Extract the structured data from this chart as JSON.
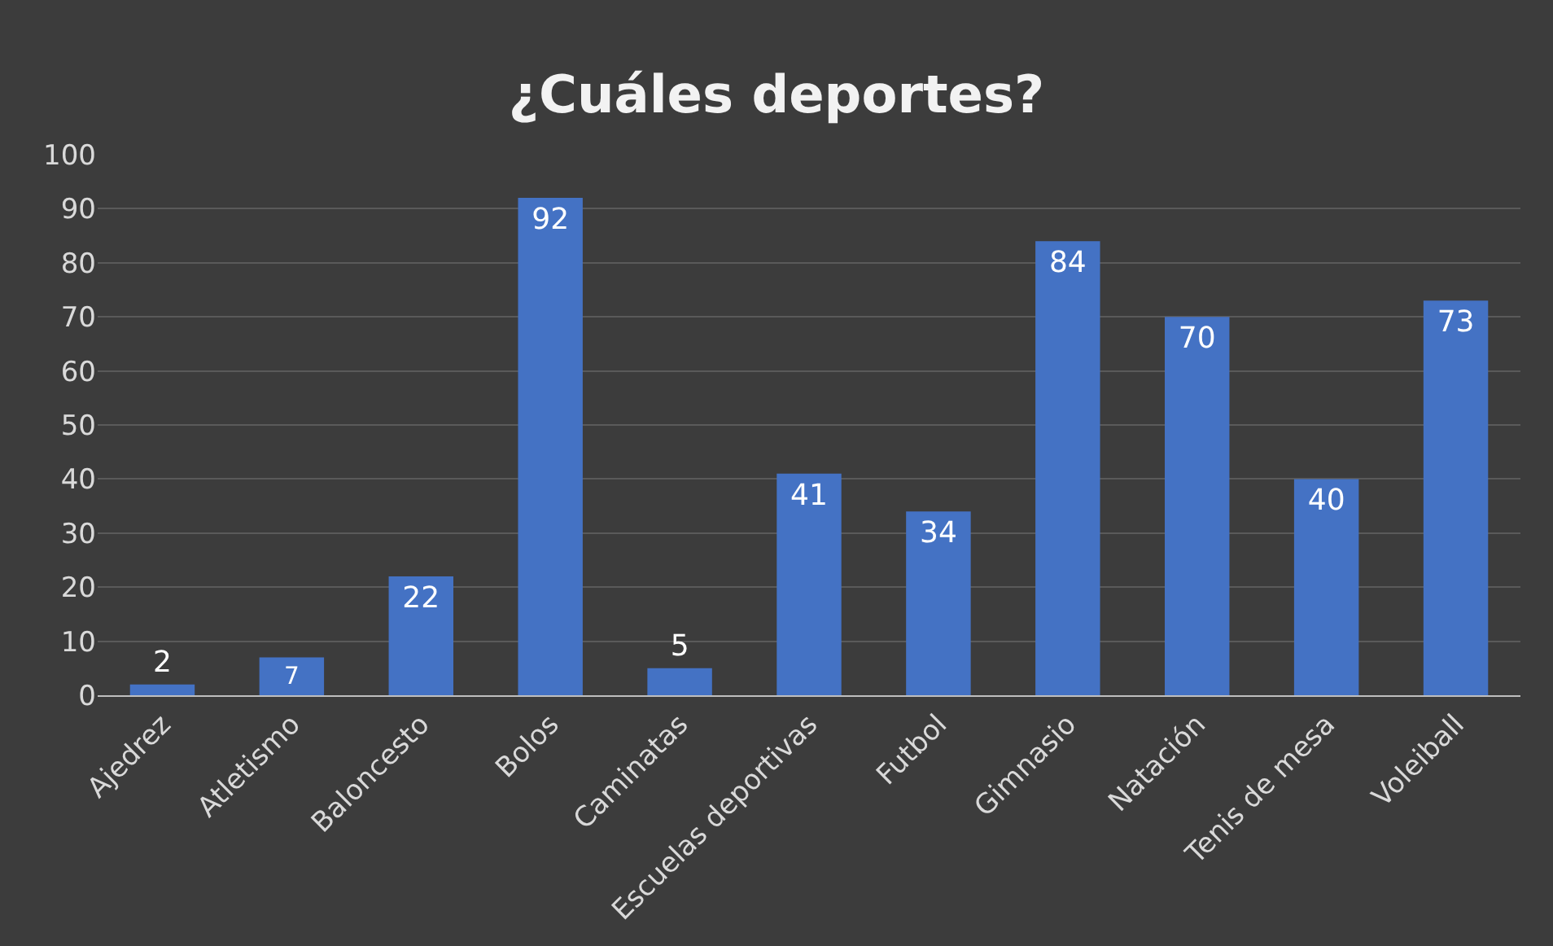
{
  "chart_data": {
    "type": "bar",
    "title": "¿Cuáles deportes?",
    "categories": [
      "Ajedrez",
      "Atletismo",
      "Baloncesto",
      "Bolos",
      "Caminatas",
      "Escuelas deportivas",
      "Futbol",
      "Gimnasio",
      "Natación",
      "Tenis de mesa",
      "Voleiball"
    ],
    "values": [
      2,
      7,
      22,
      92,
      5,
      41,
      34,
      84,
      70,
      40,
      73
    ],
    "color": "#4472c4",
    "ylim": [
      0,
      100
    ],
    "yticks": [
      0,
      10,
      20,
      30,
      40,
      50,
      60,
      70,
      80,
      90,
      100
    ],
    "grid": "y",
    "data_labels": true
  }
}
